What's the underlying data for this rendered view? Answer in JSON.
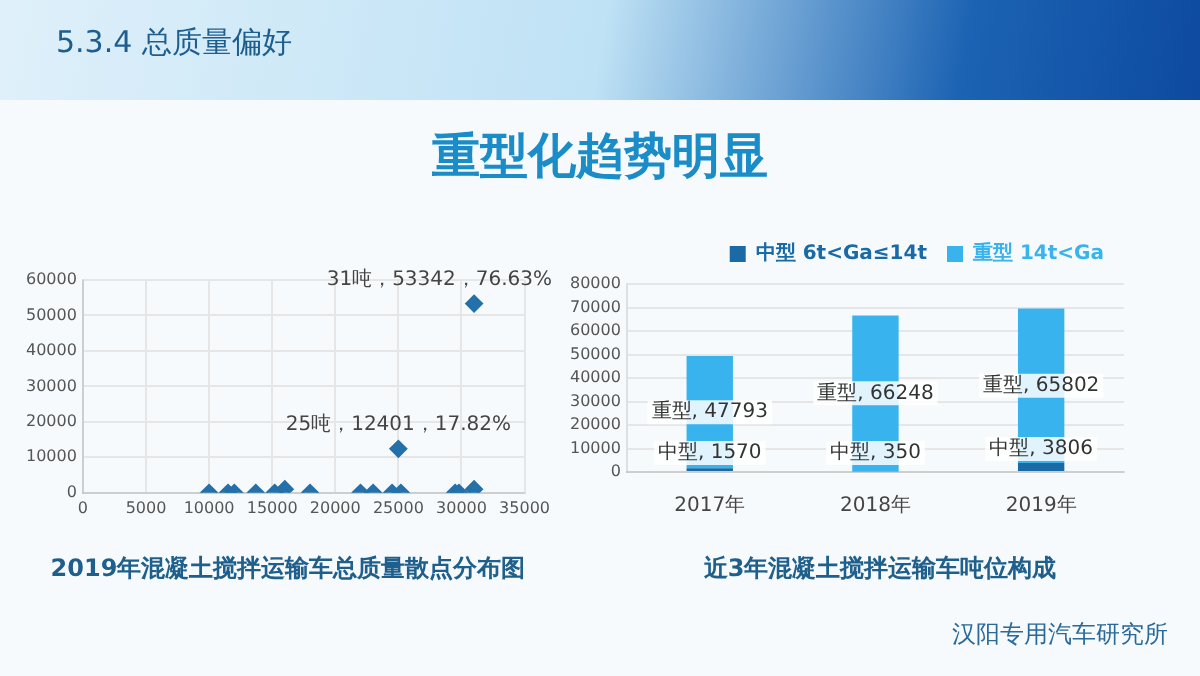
{
  "chart_data": [
    {
      "type": "other",
      "title": "5.3.4 总质量偏好",
      "subtitle": "重型化趋势明显",
      "annotations": [
        "汉阳专用汽车研究所"
      ]
    },
    {
      "type": "scatter",
      "title": "2019年混凝土搅拌运输车总质量散点分布图",
      "x": [
        10000,
        11500,
        12000,
        13700,
        15200,
        15500,
        15800,
        16000,
        18000,
        22000,
        23000,
        24500,
        25000,
        25200,
        29500,
        29800,
        31000,
        31000
      ],
      "values": [
        0,
        0,
        0,
        0,
        0,
        null,
        null,
        1000,
        0,
        0,
        0,
        0,
        12401,
        0,
        0,
        0,
        1000,
        53342
      ],
      "color": "#2470a8",
      "marker": "diamond",
      "xlim": [
        0,
        35000
      ],
      "xticks": [
        0,
        5000,
        10000,
        15000,
        20000,
        25000,
        30000,
        35000
      ],
      "ylim": [
        0,
        60000
      ],
      "yticks": [
        0,
        10000,
        20000,
        30000,
        40000,
        50000,
        60000
      ],
      "grid": true,
      "annotations": [
        {
          "text": "25吨，12401，17.82%",
          "x": 25000,
          "y": 12401
        },
        {
          "text": "31吨，53342，76.63%",
          "x": 31000,
          "y": 53342
        }
      ]
    },
    {
      "type": "bar",
      "title": "近3年混凝土搅拌运输车吨位构成",
      "categories": [
        "2017年",
        "2018年",
        "2019年"
      ],
      "stacked": true,
      "series": [
        {
          "name": "中型 6t<Ga≤14t",
          "color": "#1a6aa6",
          "values": [
            1570,
            350,
            3806
          ],
          "value_labels": [
            "中型, 1570",
            "中型, 350",
            "中型, 3806"
          ]
        },
        {
          "name": "重型 14t<Ga",
          "color": "#38b3ee",
          "values": [
            47793,
            66248,
            65802
          ],
          "value_labels": [
            "重型, 47793",
            "重型, 66248",
            "重型, 65802"
          ]
        }
      ],
      "ylim": [
        0,
        80000
      ],
      "yticks": [
        0,
        10000,
        20000,
        30000,
        40000,
        50000,
        60000,
        70000,
        80000
      ],
      "grid": "y",
      "legend": "top right"
    }
  ]
}
